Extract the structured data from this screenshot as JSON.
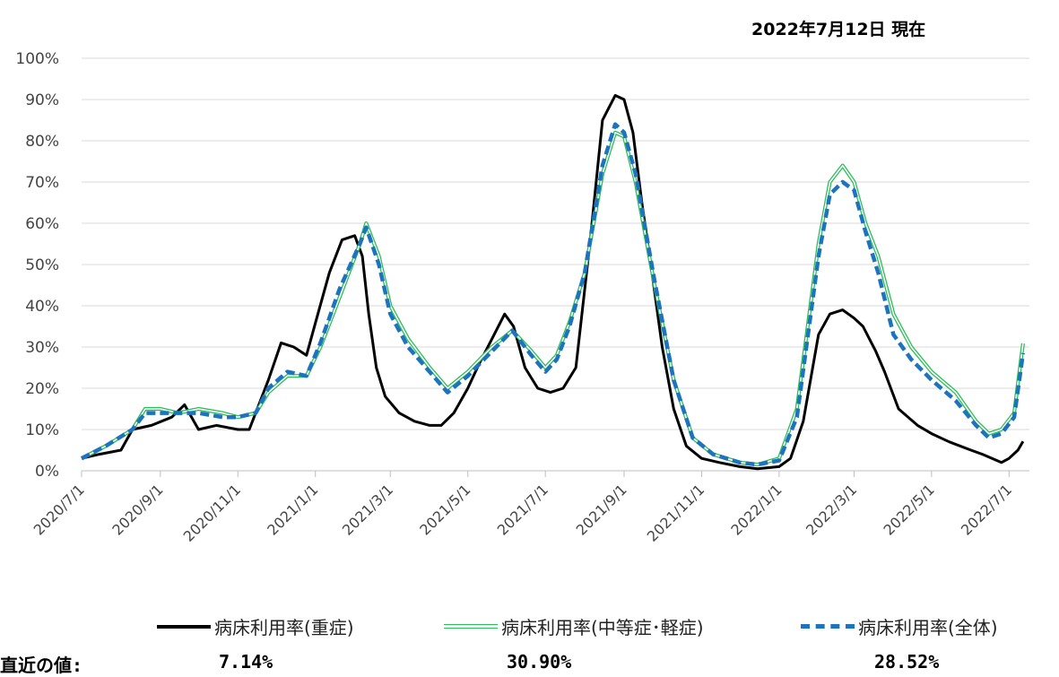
{
  "as_of": "2022年7月12日 現在",
  "chart_data": {
    "type": "line",
    "title": "",
    "xlabel": "",
    "ylabel": "",
    "ylim": [
      0,
      100
    ],
    "yticks": [
      "0%",
      "10%",
      "20%",
      "30%",
      "40%",
      "50%",
      "60%",
      "70%",
      "80%",
      "90%",
      "100%"
    ],
    "xticks": [
      "2020/7/1",
      "2020/9/1",
      "2020/11/1",
      "2021/1/1",
      "2021/3/1",
      "2021/5/1",
      "2021/7/1",
      "2021/9/1",
      "2021/11/1",
      "2022/1/1",
      "2022/3/1",
      "2022/5/1",
      "2022/7/1"
    ],
    "grid": "horizontal",
    "legend_position": "bottom",
    "series": [
      {
        "name": "病床利用率(重症)",
        "color": "#000000",
        "style": "solid",
        "points": [
          [
            "2020-07-01",
            3
          ],
          [
            "2020-07-15",
            4
          ],
          [
            "2020-08-01",
            5
          ],
          [
            "2020-08-10",
            10
          ],
          [
            "2020-08-25",
            11
          ],
          [
            "2020-09-10",
            13
          ],
          [
            "2020-09-20",
            16
          ],
          [
            "2020-10-01",
            10
          ],
          [
            "2020-10-15",
            11
          ],
          [
            "2020-11-01",
            10
          ],
          [
            "2020-11-10",
            10
          ],
          [
            "2020-11-25",
            22
          ],
          [
            "2020-12-05",
            31
          ],
          [
            "2020-12-15",
            30
          ],
          [
            "2020-12-25",
            28
          ],
          [
            "2021-01-03",
            38
          ],
          [
            "2021-01-12",
            48
          ],
          [
            "2021-01-22",
            56
          ],
          [
            "2021-02-01",
            57
          ],
          [
            "2021-02-07",
            52
          ],
          [
            "2021-02-12",
            38
          ],
          [
            "2021-02-18",
            25
          ],
          [
            "2021-02-25",
            18
          ],
          [
            "2021-03-08",
            14
          ],
          [
            "2021-03-20",
            12
          ],
          [
            "2021-04-01",
            11
          ],
          [
            "2021-04-10",
            11
          ],
          [
            "2021-04-20",
            14
          ],
          [
            "2021-05-01",
            20
          ],
          [
            "2021-05-10",
            26
          ],
          [
            "2021-05-20",
            32
          ],
          [
            "2021-05-30",
            38
          ],
          [
            "2021-06-06",
            35
          ],
          [
            "2021-06-15",
            25
          ],
          [
            "2021-06-25",
            20
          ],
          [
            "2021-07-05",
            19
          ],
          [
            "2021-07-15",
            20
          ],
          [
            "2021-07-25",
            25
          ],
          [
            "2021-08-05",
            55
          ],
          [
            "2021-08-15",
            85
          ],
          [
            "2021-08-25",
            91
          ],
          [
            "2021-09-01",
            90
          ],
          [
            "2021-09-08",
            82
          ],
          [
            "2021-09-15",
            65
          ],
          [
            "2021-09-22",
            50
          ],
          [
            "2021-10-01",
            30
          ],
          [
            "2021-10-10",
            15
          ],
          [
            "2021-10-20",
            6
          ],
          [
            "2021-11-01",
            3
          ],
          [
            "2021-11-15",
            2
          ],
          [
            "2021-12-01",
            1
          ],
          [
            "2021-12-15",
            0.5
          ],
          [
            "2022-01-01",
            1
          ],
          [
            "2022-01-10",
            3
          ],
          [
            "2022-01-20",
            12
          ],
          [
            "2022-02-01",
            33
          ],
          [
            "2022-02-10",
            38
          ],
          [
            "2022-02-20",
            39
          ],
          [
            "2022-03-01",
            37
          ],
          [
            "2022-03-08",
            35
          ],
          [
            "2022-03-18",
            29
          ],
          [
            "2022-03-25",
            24
          ],
          [
            "2022-04-05",
            15
          ],
          [
            "2022-04-20",
            11
          ],
          [
            "2022-05-01",
            9
          ],
          [
            "2022-05-15",
            7
          ],
          [
            "2022-06-01",
            5
          ],
          [
            "2022-06-10",
            4
          ],
          [
            "2022-06-25",
            2
          ],
          [
            "2022-07-01",
            3
          ],
          [
            "2022-07-08",
            5
          ],
          [
            "2022-07-12",
            7.14
          ]
        ]
      },
      {
        "name": "病床利用率(中等症･軽症)",
        "color": "#2DBE5A",
        "style": "double",
        "points": [
          [
            "2020-07-01",
            3
          ],
          [
            "2020-07-20",
            6
          ],
          [
            "2020-08-10",
            10
          ],
          [
            "2020-08-20",
            15
          ],
          [
            "2020-09-01",
            15
          ],
          [
            "2020-09-15",
            14
          ],
          [
            "2020-10-01",
            15
          ],
          [
            "2020-10-20",
            14
          ],
          [
            "2020-11-01",
            13
          ],
          [
            "2020-11-15",
            14
          ],
          [
            "2020-11-25",
            19
          ],
          [
            "2020-12-10",
            23
          ],
          [
            "2020-12-25",
            23
          ],
          [
            "2021-01-05",
            30
          ],
          [
            "2021-01-20",
            42
          ],
          [
            "2021-02-05",
            55
          ],
          [
            "2021-02-10",
            60
          ],
          [
            "2021-02-20",
            52
          ],
          [
            "2021-03-01",
            40
          ],
          [
            "2021-03-15",
            32
          ],
          [
            "2021-04-01",
            25
          ],
          [
            "2021-04-15",
            20
          ],
          [
            "2021-05-01",
            24
          ],
          [
            "2021-05-20",
            30
          ],
          [
            "2021-06-05",
            34
          ],
          [
            "2021-06-20",
            29
          ],
          [
            "2021-07-01",
            25
          ],
          [
            "2021-07-10",
            28
          ],
          [
            "2021-07-20",
            36
          ],
          [
            "2021-08-01",
            48
          ],
          [
            "2021-08-15",
            72
          ],
          [
            "2021-08-25",
            82
          ],
          [
            "2021-09-01",
            81
          ],
          [
            "2021-09-10",
            70
          ],
          [
            "2021-09-25",
            45
          ],
          [
            "2021-10-10",
            22
          ],
          [
            "2021-10-25",
            8
          ],
          [
            "2021-11-10",
            4
          ],
          [
            "2021-12-01",
            2
          ],
          [
            "2021-12-15",
            1.5
          ],
          [
            "2022-01-01",
            3
          ],
          [
            "2022-01-15",
            15
          ],
          [
            "2022-02-01",
            55
          ],
          [
            "2022-02-10",
            70
          ],
          [
            "2022-02-20",
            74
          ],
          [
            "2022-03-01",
            70
          ],
          [
            "2022-03-10",
            60
          ],
          [
            "2022-03-20",
            52
          ],
          [
            "2022-04-01",
            38
          ],
          [
            "2022-04-15",
            30
          ],
          [
            "2022-05-01",
            24
          ],
          [
            "2022-05-20",
            19
          ],
          [
            "2022-06-05",
            12
          ],
          [
            "2022-06-15",
            9
          ],
          [
            "2022-06-25",
            10
          ],
          [
            "2022-07-05",
            14
          ],
          [
            "2022-07-12",
            30.9
          ]
        ]
      },
      {
        "name": "病床利用率(全体)",
        "color": "#1E73BE",
        "style": "dashed",
        "points": [
          [
            "2020-07-01",
            3
          ],
          [
            "2020-07-20",
            6
          ],
          [
            "2020-08-10",
            10
          ],
          [
            "2020-08-20",
            14
          ],
          [
            "2020-09-01",
            14
          ],
          [
            "2020-09-15",
            14
          ],
          [
            "2020-10-01",
            14
          ],
          [
            "2020-10-20",
            13
          ],
          [
            "2020-11-01",
            13
          ],
          [
            "2020-11-15",
            14
          ],
          [
            "2020-11-25",
            20
          ],
          [
            "2020-12-10",
            24
          ],
          [
            "2020-12-25",
            23
          ],
          [
            "2021-01-05",
            31
          ],
          [
            "2021-01-20",
            44
          ],
          [
            "2021-02-05",
            55
          ],
          [
            "2021-02-10",
            59
          ],
          [
            "2021-02-20",
            50
          ],
          [
            "2021-03-01",
            38
          ],
          [
            "2021-03-15",
            30
          ],
          [
            "2021-04-01",
            24
          ],
          [
            "2021-04-15",
            19
          ],
          [
            "2021-05-01",
            23
          ],
          [
            "2021-05-20",
            29
          ],
          [
            "2021-06-05",
            34
          ],
          [
            "2021-06-20",
            28
          ],
          [
            "2021-07-01",
            24
          ],
          [
            "2021-07-10",
            27
          ],
          [
            "2021-07-20",
            35
          ],
          [
            "2021-08-01",
            48
          ],
          [
            "2021-08-15",
            74
          ],
          [
            "2021-08-25",
            84
          ],
          [
            "2021-09-01",
            82
          ],
          [
            "2021-09-10",
            72
          ],
          [
            "2021-09-25",
            46
          ],
          [
            "2021-10-10",
            22
          ],
          [
            "2021-10-25",
            8
          ],
          [
            "2021-11-10",
            4
          ],
          [
            "2021-12-01",
            2
          ],
          [
            "2021-12-15",
            1.5
          ],
          [
            "2022-01-01",
            2.5
          ],
          [
            "2022-01-15",
            13
          ],
          [
            "2022-02-01",
            52
          ],
          [
            "2022-02-10",
            67
          ],
          [
            "2022-02-20",
            70
          ],
          [
            "2022-03-01",
            68
          ],
          [
            "2022-03-10",
            58
          ],
          [
            "2022-03-20",
            48
          ],
          [
            "2022-04-01",
            33
          ],
          [
            "2022-04-15",
            27
          ],
          [
            "2022-05-01",
            22
          ],
          [
            "2022-05-20",
            17
          ],
          [
            "2022-06-05",
            11
          ],
          [
            "2022-06-15",
            8
          ],
          [
            "2022-06-25",
            9
          ],
          [
            "2022-07-05",
            13
          ],
          [
            "2022-07-12",
            28.52
          ]
        ]
      }
    ]
  },
  "latest": {
    "label": "直近の値:",
    "severe": "7.14%",
    "moderate": "30.90%",
    "total": "28.52%"
  }
}
